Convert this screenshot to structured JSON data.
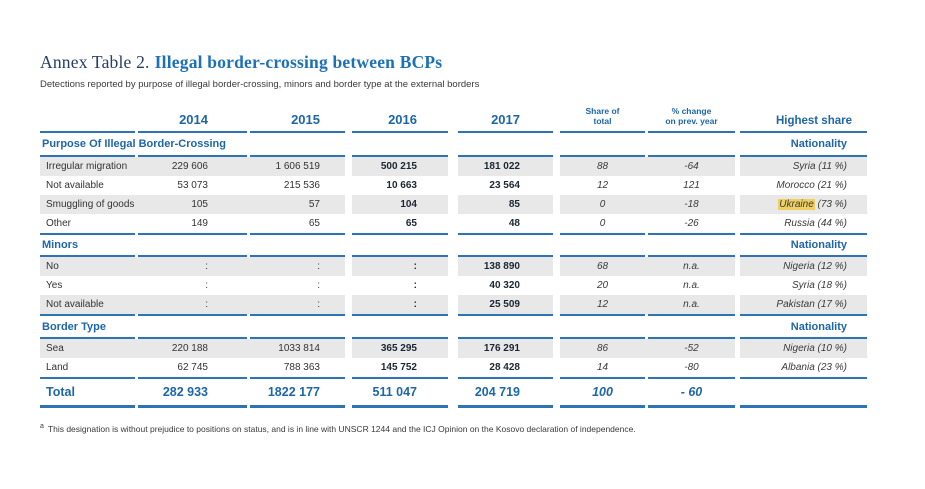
{
  "title": {
    "prefix": "Annex Table 2.",
    "main": "Illegal border-crossing between BCPs"
  },
  "subtitle": "Detections reported by purpose of illegal border-crossing, minors and border type at the external borders",
  "colors": {
    "accent_blue": "#1e66a8",
    "rule_blue": "#2e74b5",
    "row_shading": "#e8e8e8",
    "highlight_yellow": "#edd060"
  },
  "table": {
    "header": {
      "years": [
        "2014",
        "2015",
        "2016",
        "2017"
      ],
      "share_of_total": [
        "Share of",
        "total"
      ],
      "pct_change": [
        "% change",
        "on prev. year"
      ],
      "highest_share": "Highest share"
    },
    "sections": [
      {
        "title": "Purpose Of Illegal Border-Crossing",
        "right_label": "Nationality",
        "rows": [
          {
            "label": "Irregular migration",
            "y2014": "229 606",
            "y2015": "1 606 519",
            "y2016": "500 215",
            "y2017": "181 022",
            "share": "88",
            "change": "-64",
            "highest": "Syria (11 %)",
            "shaded": true
          },
          {
            "label": "Not available",
            "y2014": "53 073",
            "y2015": "215 536",
            "y2016": "10 663",
            "y2017": "23 564",
            "share": "12",
            "change": "121",
            "highest": "Morocco (21 %)",
            "shaded": false
          },
          {
            "label": "Smuggling of goods",
            "y2014": "105",
            "y2015": "57",
            "y2016": "104",
            "y2017": "85",
            "share": "0",
            "change": "-18",
            "highest": "Ukraine (73 %)",
            "highlight": "Ukraine",
            "shaded": true
          },
          {
            "label": "Other",
            "y2014": "149",
            "y2015": "65",
            "y2016": "65",
            "y2017": "48",
            "share": "0",
            "change": "-26",
            "highest": "Russia (44 %)",
            "shaded": false
          }
        ]
      },
      {
        "title": "Minors",
        "right_label": "Nationality",
        "rows": [
          {
            "label": "No",
            "y2014": ":",
            "y2015": ":",
            "y2016": ":",
            "y2017": "138 890",
            "share": "68",
            "change": "n.a.",
            "highest": "Nigeria (12 %)",
            "shaded": true
          },
          {
            "label": "Yes",
            "y2014": ":",
            "y2015": ":",
            "y2016": ":",
            "y2017": "40 320",
            "share": "20",
            "change": "n.a.",
            "highest": "Syria (18 %)",
            "shaded": false
          },
          {
            "label": "Not available",
            "y2014": ":",
            "y2015": ":",
            "y2016": ":",
            "y2017": "25 509",
            "share": "12",
            "change": "n.a.",
            "highest": "Pakistan (17 %)",
            "shaded": true
          }
        ]
      },
      {
        "title": "Border Type",
        "right_label": "Nationality",
        "rows": [
          {
            "label": "Sea",
            "y2014": "220 188",
            "y2015": "1033 814",
            "y2016": "365 295",
            "y2017": "176 291",
            "share": "86",
            "change": "-52",
            "highest": "Nigeria (10 %)",
            "shaded": true
          },
          {
            "label": "Land",
            "y2014": "62 745",
            "y2015": "788 363",
            "y2016": "145 752",
            "y2017": "28 428",
            "share": "14",
            "change": "-80",
            "highest": "Albania (23 %)",
            "shaded": false
          }
        ]
      }
    ],
    "total": {
      "label": "Total",
      "y2014": "282 933",
      "y2015": "1822 177",
      "y2016": "511 047",
      "y2017": "204 719",
      "share": "100",
      "change": "- 60",
      "highest": ""
    }
  },
  "footnote": {
    "marker": "a",
    "text": "This designation is without prejudice to positions on status, and is in line with UNSCR 1244 and the ICJ Opinion on the Kosovo declaration of independence."
  }
}
